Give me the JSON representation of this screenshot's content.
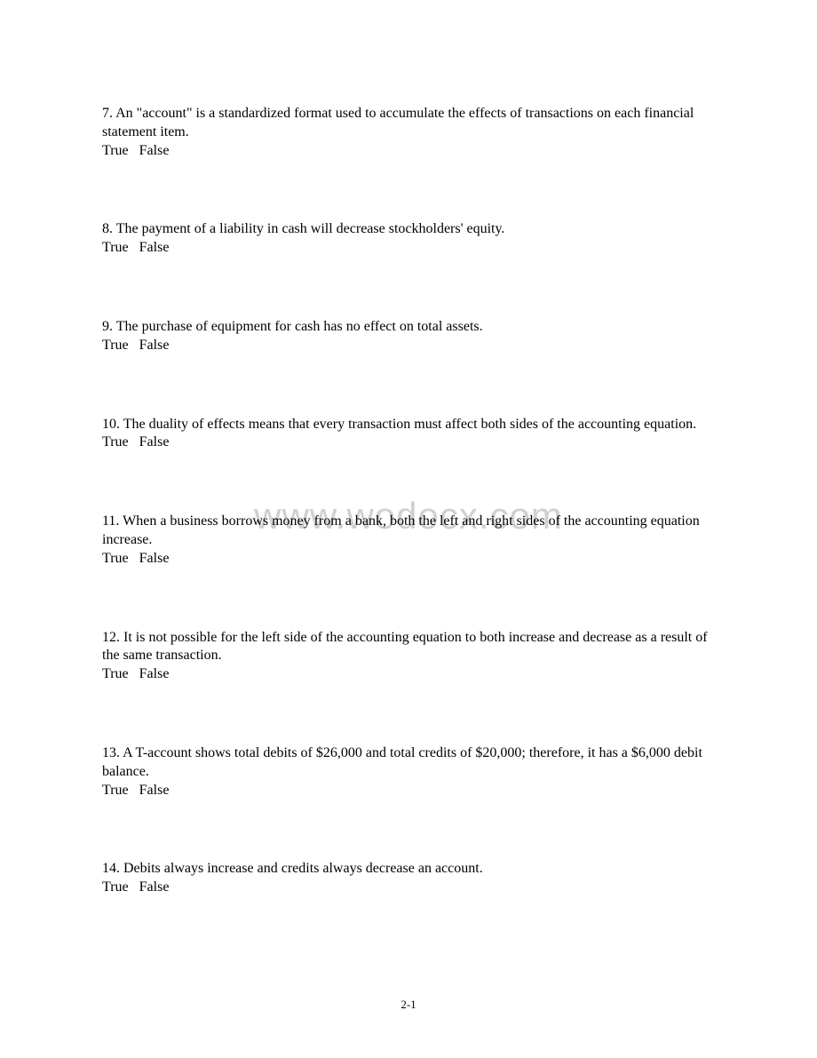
{
  "watermark": "www.wodocx.com",
  "pageNumber": "2-1",
  "answerTrue": "True",
  "answerFalse": "False",
  "questions": [
    {
      "number": "7",
      "text": "An \"account\" is a standardized format used to accumulate the effects of transactions on each financial statement item."
    },
    {
      "number": "8",
      "text": "The payment of a liability in cash will decrease stockholders' equity."
    },
    {
      "number": "9",
      "text": "The purchase of equipment for cash has no effect on total assets."
    },
    {
      "number": "10",
      "text": "The duality of effects means that every transaction must affect both sides of the accounting equation."
    },
    {
      "number": "11",
      "text": "When a business borrows money from a bank, both the left and right sides of the accounting equation increase."
    },
    {
      "number": "12",
      "text": "It is not possible for the left side of the accounting equation to both increase and decrease as a result of the same transaction."
    },
    {
      "number": "13",
      "text": "A T-account shows total debits of $26,000 and total credits of $20,000; therefore, it has a $6,000 debit balance."
    },
    {
      "number": "14",
      "text": "Debits always increase and credits always decrease an account."
    }
  ]
}
